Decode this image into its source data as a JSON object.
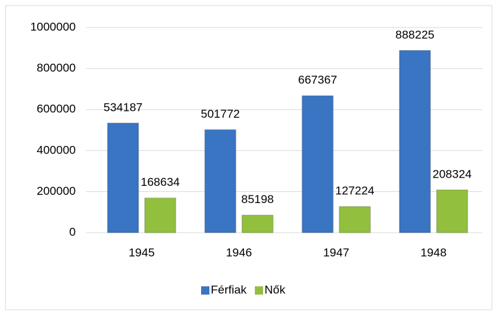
{
  "chart_data": {
    "type": "bar",
    "categories": [
      "1945",
      "1946",
      "1947",
      "1948"
    ],
    "series": [
      {
        "name": "Férfiak",
        "color": "#3a75c4",
        "values": [
          534187,
          501772,
          667367,
          888225
        ]
      },
      {
        "name": "Nők",
        "color": "#92c03e",
        "values": [
          168634,
          85198,
          127224,
          208324
        ]
      }
    ],
    "ylim": [
      0,
      1000000
    ],
    "yticks": [
      0,
      200000,
      400000,
      600000,
      800000,
      1000000
    ],
    "grid": true,
    "legend": "bottom"
  }
}
